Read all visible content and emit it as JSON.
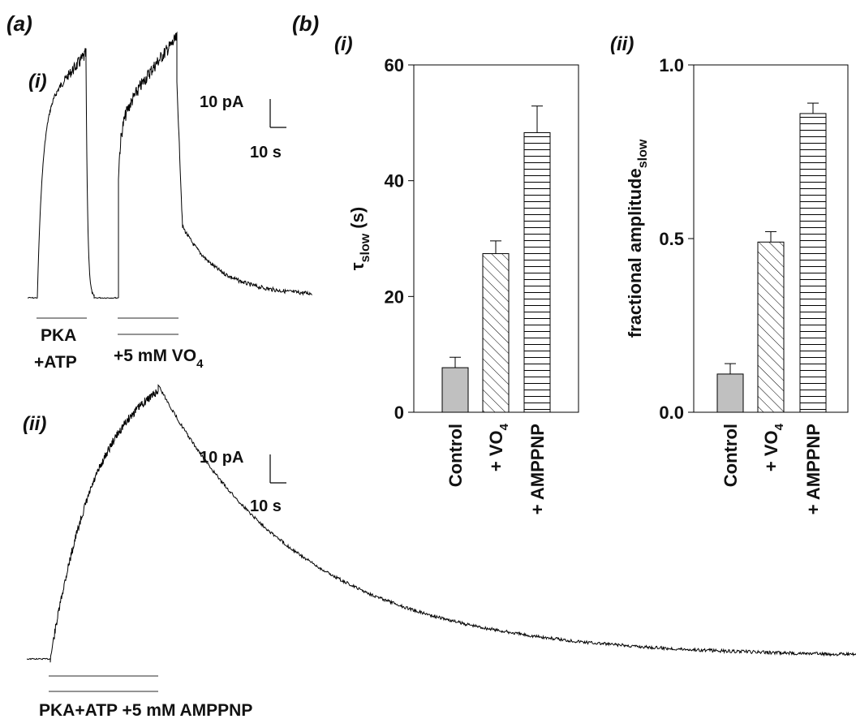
{
  "figure": {
    "panel_a": "(a)",
    "panel_b": "(b)",
    "a_i": "(i)",
    "a_ii": "(ii)",
    "b_i": "(i)",
    "b_ii": "(ii)",
    "trace_i": {
      "scale_current": "10 pA",
      "scale_time": "10 s",
      "bar1_top": "PKA",
      "bar1_bottom": "+ATP",
      "bar2_text": "+5 mM VO",
      "bar2_sub": "4"
    },
    "trace_ii": {
      "scale_current": "10 pA",
      "scale_time": "10 s",
      "bar_text": "PKA+ATP +5 mM AMPPNP"
    }
  },
  "chart_data": [
    {
      "type": "bar",
      "categories": [
        "Control",
        "+ VO4",
        "+ AMPPNP"
      ],
      "category_labels": [
        {
          "main": "Control",
          "sub": ""
        },
        {
          "main": "+ VO",
          "sub": "4"
        },
        {
          "main": "+ AMPPNP",
          "sub": ""
        }
      ],
      "values": [
        7.7,
        27.4,
        48.3
      ],
      "errors": [
        1.8,
        2.2,
        4.6
      ],
      "ylim": [
        0,
        60
      ],
      "yticks": [
        0,
        20,
        40,
        60
      ],
      "ylabel_main": "τ",
      "ylabel_sub": "slow",
      "ylabel_tail": " (s)",
      "colors": {
        "fill_control": "#c0c0c0",
        "edge": "#000000"
      },
      "patterns": [
        "solid-grey",
        "diagonal-hatch",
        "horizontal-hatch"
      ]
    },
    {
      "type": "bar",
      "categories": [
        "Control",
        "+ VO4",
        "+ AMPPNP"
      ],
      "category_labels": [
        {
          "main": "Control",
          "sub": ""
        },
        {
          "main": "+ VO",
          "sub": "4"
        },
        {
          "main": "+ AMPPNP",
          "sub": ""
        }
      ],
      "values": [
        0.11,
        0.49,
        0.86
      ],
      "errors": [
        0.03,
        0.03,
        0.03
      ],
      "ylim": [
        0,
        1
      ],
      "yticks": [
        0,
        0.5,
        1
      ],
      "ytick_labels": [
        "0.0",
        "0.5",
        "1.0"
      ],
      "ylabel_main": "fractional amplitude",
      "ylabel_sub": "slow",
      "colors": {
        "fill_control": "#c0c0c0",
        "edge": "#000000"
      },
      "patterns": [
        "solid-grey",
        "diagonal-hatch",
        "horizontal-hatch"
      ]
    }
  ]
}
